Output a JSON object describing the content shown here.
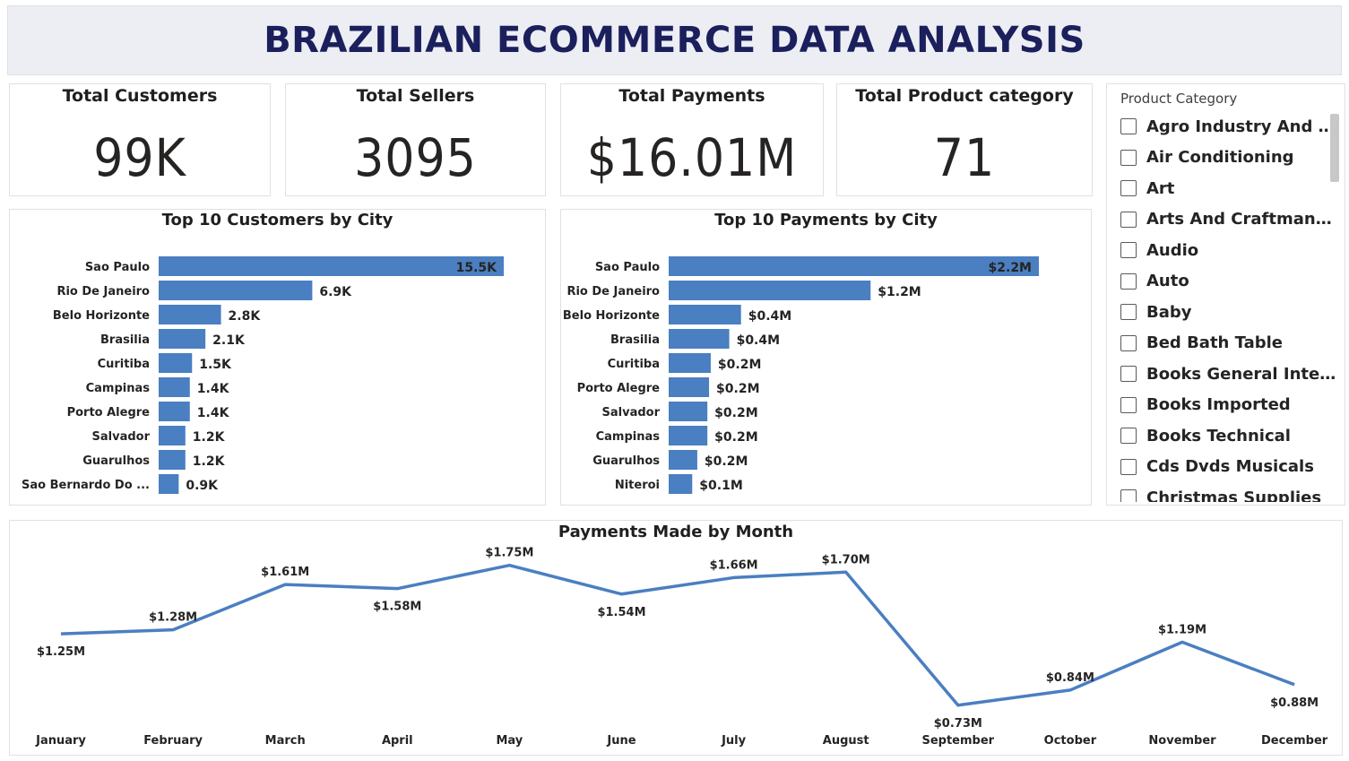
{
  "header": {
    "title": "BRAZILIAN ECOMMERCE DATA ANALYSIS"
  },
  "kpis": [
    {
      "label": "Total Customers",
      "value": "99K"
    },
    {
      "label": "Total Sellers",
      "value": "3095"
    },
    {
      "label": "Total Payments",
      "value": "$16.01M"
    },
    {
      "label": "Total Product category",
      "value": "71"
    }
  ],
  "colors": {
    "bar": "#4a7fc1",
    "line": "#4a7fc1",
    "title": "#1b1f5c"
  },
  "slicer": {
    "title": "Product Category",
    "items": [
      "Agro Industry And Commerce",
      "Air Conditioning",
      "Art",
      "Arts And Craftmanship",
      "Audio",
      "Auto",
      "Baby",
      "Bed Bath Table",
      "Books General Interest",
      "Books Imported",
      "Books Technical",
      "Cds Dvds Musicals",
      "Christmas Supplies"
    ]
  },
  "chart_data": [
    {
      "type": "bar",
      "orientation": "horizontal",
      "title": "Top 10 Customers by City",
      "categories": [
        "Sao Paulo",
        "Rio De Janeiro",
        "Belo Horizonte",
        "Brasilia",
        "Curitiba",
        "Campinas",
        "Porto Alegre",
        "Salvador",
        "Guarulhos",
        "Sao Bernardo Do Campo"
      ],
      "values": [
        15500,
        6900,
        2800,
        2100,
        1500,
        1400,
        1400,
        1200,
        1200,
        900
      ],
      "labels": [
        "15.5K",
        "6.9K",
        "2.8K",
        "2.1K",
        "1.5K",
        "1.4K",
        "1.4K",
        "1.2K",
        "1.2K",
        "0.9K"
      ],
      "xlim": [
        0,
        15500
      ]
    },
    {
      "type": "bar",
      "orientation": "horizontal",
      "title": "Top 10 Payments by City",
      "categories": [
        "Sao Paulo",
        "Rio De Janeiro",
        "Belo Horizonte",
        "Brasilia",
        "Curitiba",
        "Porto Alegre",
        "Salvador",
        "Campinas",
        "Guarulhos",
        "Niteroi"
      ],
      "values": [
        2.2,
        1.2,
        0.43,
        0.36,
        0.25,
        0.24,
        0.23,
        0.23,
        0.17,
        0.14
      ],
      "labels": [
        "$2.2M",
        "$1.2M",
        "$0.4M",
        "$0.4M",
        "$0.2M",
        "$0.2M",
        "$0.2M",
        "$0.2M",
        "$0.2M",
        "$0.1M"
      ],
      "xlim": [
        0,
        2.2
      ]
    },
    {
      "type": "line",
      "title": "Payments Made by Month",
      "categories": [
        "January",
        "February",
        "March",
        "April",
        "May",
        "June",
        "July",
        "August",
        "September",
        "October",
        "November",
        "December"
      ],
      "values": [
        1.25,
        1.28,
        1.61,
        1.58,
        1.75,
        1.54,
        1.66,
        1.7,
        0.73,
        0.84,
        1.19,
        0.88
      ],
      "labels": [
        "$1.25M",
        "$1.28M",
        "$1.61M",
        "$1.58M",
        "$1.75M",
        "$1.54M",
        "$1.66M",
        "$1.70M",
        "$0.73M",
        "$0.84M",
        "$1.19M",
        "$0.88M"
      ],
      "ylim": [
        0.65,
        1.8
      ],
      "grid": false
    }
  ]
}
